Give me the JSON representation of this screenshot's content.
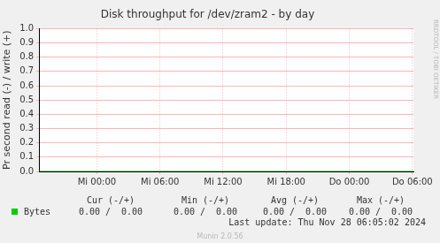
{
  "chart_data": {
    "type": "line",
    "title": "Disk throughput for /dev/zram2 - by day",
    "y_label": "Pr second read (-) / write (+)",
    "x": [
      -5.5,
      0,
      6,
      12,
      18,
      24,
      30,
      30.1
    ],
    "series": [
      {
        "name": "Bytes",
        "color": "#00cc00",
        "values": [
          0,
          0,
          0,
          0,
          0,
          0,
          0,
          0
        ]
      }
    ],
    "xlim": [
      -5.5,
      30.1
    ],
    "xticks": [
      {
        "value": 0,
        "label": "Mi 00:00"
      },
      {
        "value": 6,
        "label": "Mi 06:00"
      },
      {
        "value": 12,
        "label": "Mi 12:00"
      },
      {
        "value": 18,
        "label": "Mi 18:00"
      },
      {
        "value": 24,
        "label": "Do 00:00"
      },
      {
        "value": 30,
        "label": "Do 06:00"
      }
    ],
    "ylim": [
      0,
      1
    ],
    "yticks": [
      {
        "value": 0,
        "label": "0.0"
      },
      {
        "value": 0.1,
        "label": "0.1"
      },
      {
        "value": 0.2,
        "label": "0.2"
      },
      {
        "value": 0.3,
        "label": "0.3"
      },
      {
        "value": 0.4,
        "label": "0.4"
      },
      {
        "value": 0.5,
        "label": "0.5"
      },
      {
        "value": 0.6,
        "label": "0.6"
      },
      {
        "value": 0.7,
        "label": "0.7"
      },
      {
        "value": 0.8,
        "label": "0.8"
      },
      {
        "value": 0.9,
        "label": "0.9"
      },
      {
        "value": 1,
        "label": "1.0"
      }
    ],
    "grid": true,
    "summary": {
      "columns": [
        "Cur (-/+)",
        "Min (-/+)",
        "Avg (-/+)",
        "Max (-/+)"
      ],
      "rows": [
        [
          "0.00 /  0.00",
          "0.00 /  0.00",
          "0.00 /  0.00",
          "0.00 /  0.00"
        ]
      ]
    },
    "footer": "Last update: Thu Nov 28 06:05:02 2024",
    "credit": "Munin 2.0.56",
    "side_text": "RRDTOOL / TOBI OETIKER"
  }
}
